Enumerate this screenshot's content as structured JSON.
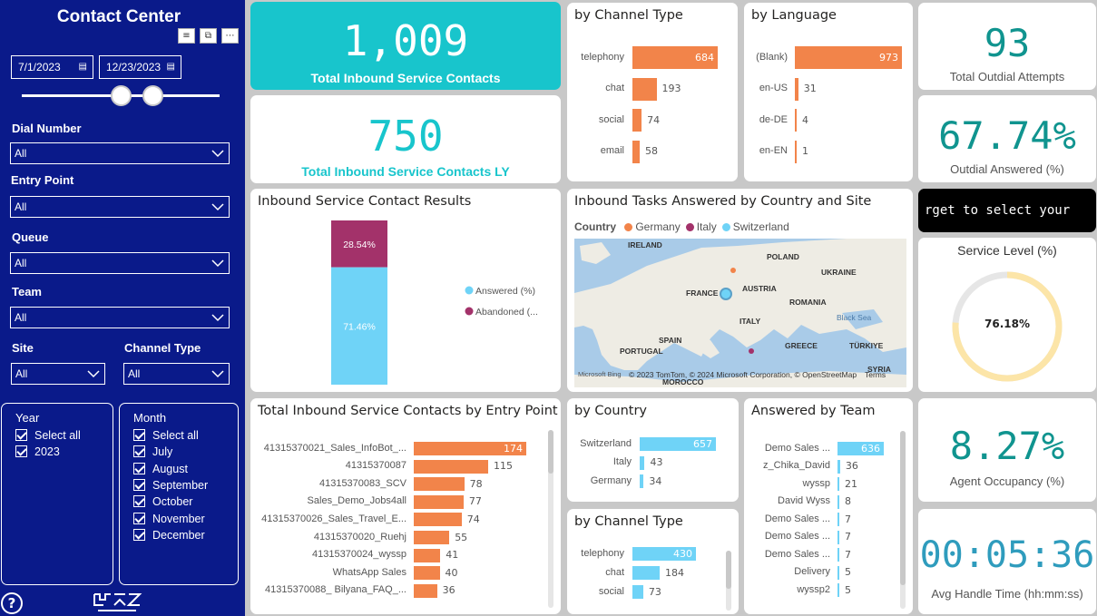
{
  "sidebar": {
    "title": "Contact Center",
    "date_from": "7/1/2023",
    "date_to": "12/23/2023",
    "filters": {
      "dial_number": {
        "label": "Dial Number",
        "value": "All"
      },
      "entry_point": {
        "label": "Entry Point",
        "value": "All"
      },
      "queue": {
        "label": "Queue",
        "value": "All"
      },
      "team": {
        "label": "Team",
        "value": "All"
      },
      "site": {
        "label": "Site",
        "value": "All"
      },
      "channel_type": {
        "label": "Channel Type",
        "value": "All"
      }
    },
    "year": {
      "title": "Year",
      "items": [
        "Select all",
        "2023"
      ]
    },
    "month": {
      "title": "Month",
      "items": [
        "Select all",
        "July",
        "August",
        "September",
        "October",
        "November",
        "December"
      ]
    },
    "help": "?",
    "tool_icons": [
      "filter-icon",
      "focus-icon",
      "more-icon"
    ]
  },
  "kpi": {
    "total_inbound": {
      "value": "1,009",
      "label": "Total Inbound Service Contacts"
    },
    "total_inbound_ly": {
      "value": "750",
      "label": "Total Inbound Service Contacts LY"
    },
    "outdial_attempts": {
      "value": "93",
      "label": "Total Outdial Attempts"
    },
    "outdial_answered": {
      "value": "67.74%",
      "label": "Outdial Answered (%)"
    },
    "agent_occupancy": {
      "value": "8.27%",
      "label": "Agent Occupancy (%)"
    },
    "avg_handle_time": {
      "value": "00:05:36",
      "label": "Avg Handle Time (hh:mm:ss)"
    }
  },
  "marquee_text": "rget to select your",
  "channel_type_top": {
    "title": "by Channel Type",
    "categories": [
      "telephony",
      "chat",
      "social",
      "email"
    ],
    "values": [
      684,
      193,
      74,
      58
    ],
    "color": "#f2844a"
  },
  "language": {
    "title": "by Language",
    "categories": [
      "(Blank)",
      "en-US",
      "de-DE",
      "en-EN"
    ],
    "values": [
      973,
      31,
      4,
      1
    ],
    "color": "#f2844a"
  },
  "results": {
    "title": "Inbound Service Contact Results",
    "answered_pct": 71.46,
    "abandoned_pct": 28.54,
    "answered_label": "71.46%",
    "abandoned_label": "28.54%",
    "legend": [
      "Answered (%)",
      "Abandoned (..."
    ],
    "colors": {
      "answered": "#6fd3f7",
      "abandoned": "#a3326a"
    }
  },
  "map": {
    "title": "Inbound Tasks Answered by Country and Site",
    "legend_title": "Country",
    "legend": [
      {
        "name": "Germany",
        "color": "#f2844a"
      },
      {
        "name": "Italy",
        "color": "#a3326a"
      },
      {
        "name": "Switzerland",
        "color": "#6fd3f7"
      }
    ],
    "labels": [
      "IRELAND",
      "POLAND",
      "UKRAINE",
      "FRANCE",
      "AUSTRIA",
      "ROMANIA",
      "Black Sea",
      "ITALY",
      "SPAIN",
      "PORTUGAL",
      "GREECE",
      "TÜRKIYE",
      "SYRIA",
      "MOROCCO"
    ],
    "attribution": "© 2023 TomTom, © 2024 Microsoft Corporation, © OpenStreetMap",
    "terms": "Terms",
    "bing": "Microsoft Bing"
  },
  "service_level": {
    "title": "Service Level (%)",
    "value": 76.18,
    "label": "76.18%",
    "color": "#fce5a8"
  },
  "entry_point": {
    "title": "Total Inbound Service Contacts by Entry Point",
    "categories": [
      "41315370021_Sales_InfoBot_...",
      "41315370087",
      "41315370083_SCV",
      "Sales_Demo_Jobs4all",
      "41315370026_Sales_Travel_E...",
      "41315370020_Ruehj",
      "41315370024_wyssp",
      "WhatsApp Sales",
      "41315370088_ Bilyana_FAQ_..."
    ],
    "values": [
      174,
      115,
      78,
      77,
      74,
      55,
      41,
      40,
      36
    ],
    "color": "#f2844a"
  },
  "country": {
    "title": "by Country",
    "categories": [
      "Switzerland",
      "Italy",
      "Germany"
    ],
    "values": [
      657,
      43,
      34
    ],
    "color": "#6fd3f7"
  },
  "channel_type_bottom": {
    "title": "by Channel Type",
    "categories": [
      "telephony",
      "chat",
      "social"
    ],
    "values": [
      430,
      184,
      73
    ],
    "color": "#6fd3f7"
  },
  "team": {
    "title": "Answered by Team",
    "categories": [
      "Demo Sales ...",
      "z_Chika_David",
      "wyssp",
      "David Wyss",
      "Demo Sales ...",
      "Demo Sales ...",
      "Demo Sales ...",
      "Delivery",
      "wyssp2"
    ],
    "values": [
      636,
      36,
      21,
      8,
      7,
      7,
      7,
      5,
      5
    ],
    "color": "#6fd3f7"
  }
}
